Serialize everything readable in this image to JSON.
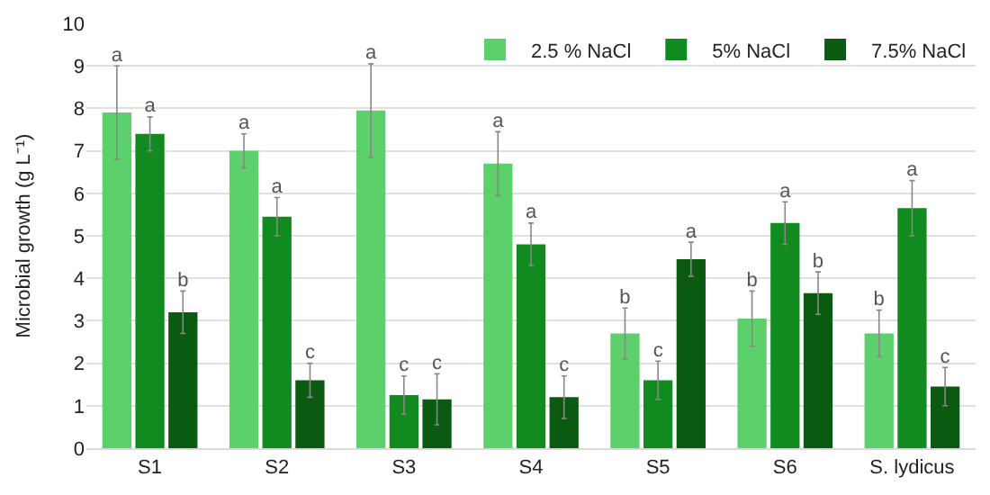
{
  "chart_data": {
    "type": "bar",
    "ylabel": "Microbial growth (g L⁻¹)",
    "categories": [
      "S1",
      "S2",
      "S3",
      "S4",
      "S5",
      "S6",
      "S. lydicus"
    ],
    "series": [
      {
        "name": "2.5 % NaCl",
        "color": "#5cd16b",
        "values": [
          7.9,
          7.0,
          7.95,
          6.7,
          2.7,
          3.05,
          2.7
        ],
        "errors": [
          1.1,
          0.4,
          1.1,
          0.75,
          0.6,
          0.65,
          0.55
        ],
        "value_labels": [
          "a",
          "a",
          "a",
          "a",
          "b",
          "b",
          "b"
        ]
      },
      {
        "name": "5% NaCl",
        "color": "#118a1f",
        "values": [
          7.4,
          5.45,
          1.25,
          4.8,
          1.6,
          5.3,
          5.65
        ],
        "errors": [
          0.4,
          0.45,
          0.45,
          0.5,
          0.45,
          0.5,
          0.65
        ],
        "value_labels": [
          "a",
          "a",
          "c",
          "a",
          "c",
          "a",
          "a"
        ]
      },
      {
        "name": "7.5% NaCl",
        "color": "#0a5a12",
        "values": [
          3.2,
          1.6,
          1.15,
          1.2,
          4.45,
          3.65,
          1.45
        ],
        "errors": [
          0.5,
          0.4,
          0.6,
          0.5,
          0.4,
          0.5,
          0.45
        ],
        "value_labels": [
          "b",
          "c",
          "c",
          "c",
          "a",
          "b",
          "c"
        ]
      }
    ],
    "ylim": [
      0,
      10
    ],
    "yticks": [
      0,
      1,
      2,
      3,
      4,
      5,
      6,
      7,
      8,
      9,
      10
    ],
    "grid": "y",
    "legend": "top right"
  }
}
